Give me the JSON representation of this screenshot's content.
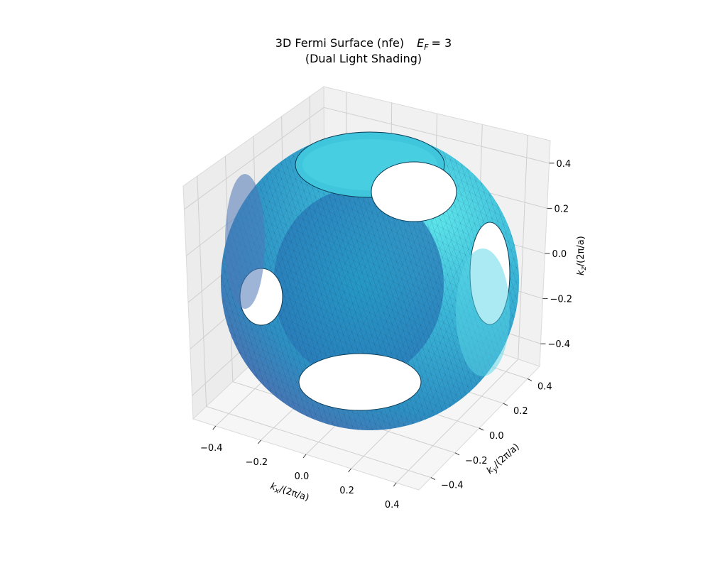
{
  "chart_data": {
    "type": "surface3d",
    "title_line1": "3D Fermi Surface (nfe)",
    "title_ef_symbol": "E",
    "title_ef_sub": "F",
    "title_ef_value": "= 3",
    "title_line2": "(Dual Light Shading)",
    "xlabel": {
      "k": "k",
      "sub": "x",
      "rest": "/(2π/a)"
    },
    "ylabel": {
      "k": "k",
      "sub": "y",
      "rest": "/(2π/a)"
    },
    "zlabel": {
      "k": "k",
      "sub": "z",
      "rest": "/(2π/a)"
    },
    "x_ticks": [
      "−0.4",
      "−0.2",
      "0.0",
      "0.2",
      "0.4"
    ],
    "y_ticks": [
      "−0.4",
      "−0.2",
      "0.0",
      "0.2",
      "0.4"
    ],
    "z_ticks": [
      "−0.4",
      "−0.2",
      "0.0",
      "0.2",
      "0.4"
    ],
    "x_tick_values": [
      -0.4,
      -0.2,
      0.0,
      0.2,
      0.4
    ],
    "y_tick_values": [
      -0.4,
      -0.2,
      0.0,
      0.2,
      0.4
    ],
    "z_tick_values": [
      -0.4,
      -0.2,
      0.0,
      0.2,
      0.4
    ],
    "xlim": [
      -0.5,
      0.5
    ],
    "ylim": [
      -0.5,
      0.5
    ],
    "zlim": [
      -0.5,
      0.5
    ],
    "surface": {
      "shape": "sphere with circular openings at the six Brillouin-zone faces",
      "approx_radius": 0.46,
      "neck_opening_radius": 0.2
    },
    "colors": {
      "dark": "#5a6cb0",
      "mid": "#2b9ac8",
      "light": "#55e3ea"
    },
    "grid": true
  }
}
